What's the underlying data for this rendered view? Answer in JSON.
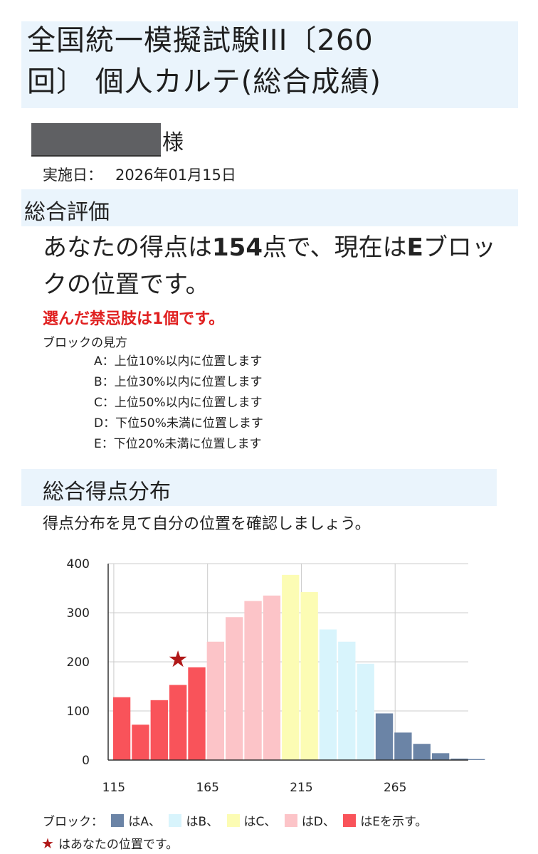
{
  "header": {
    "title_line1": "全国統一模擬試験III〔260",
    "title_line2": "回〕 個人カルテ(総合成績)"
  },
  "recipient": {
    "suffix": "様"
  },
  "exam": {
    "date_label": "実施日：",
    "date_value": "2026年01月15日"
  },
  "overall": {
    "section_title": "総合評価",
    "score_prefix": "あなたの得点は",
    "score": "154",
    "score_mid": "点で、現在は",
    "block": "E",
    "score_suffix": "ブロックの位置です。",
    "taboo_text": "選んだ禁忌肢は1個です。",
    "legend_title": "ブロックの見方",
    "blocks": [
      "A：上位10%以内に位置します",
      "B：上位30%以内に位置します",
      "C：上位50%以内に位置します",
      "D：下位50%未満に位置します",
      "E：下位20%未満に位置します"
    ]
  },
  "distribution": {
    "section_title": "総合得点分布",
    "subtitle": "得点分布を見て自分の位置を確認しましょう。",
    "legend": {
      "prefix": "ブロック：",
      "a": "はA、",
      "b": "はB、",
      "c": "はC、",
      "d": "はD、",
      "e": "はEを示す。",
      "star_text": "はあなたの位置です。"
    }
  },
  "colors": {
    "band": "#eaf4fc",
    "block_a": "#6b84a6",
    "block_b": "#d8f4fc",
    "block_c": "#fcfcb4",
    "block_d": "#fcc4c8",
    "block_e": "#f9535a",
    "star": "#b01818",
    "taboo": "#e02020"
  },
  "chart_data": {
    "type": "bar",
    "title": "",
    "xlabel": "",
    "ylabel": "",
    "ylim": [
      0,
      400
    ],
    "yticks": [
      0,
      100,
      200,
      300,
      400
    ],
    "xticks": [
      115,
      165,
      215,
      265
    ],
    "xlim": [
      112,
      304
    ],
    "bin_width": 10,
    "bins": [
      {
        "x": 115,
        "value": 128,
        "block": "E"
      },
      {
        "x": 125,
        "value": 72,
        "block": "E"
      },
      {
        "x": 135,
        "value": 122,
        "block": "E"
      },
      {
        "x": 145,
        "value": 153,
        "block": "E"
      },
      {
        "x": 155,
        "value": 189,
        "block": "E"
      },
      {
        "x": 165,
        "value": 241,
        "block": "D"
      },
      {
        "x": 175,
        "value": 291,
        "block": "D"
      },
      {
        "x": 185,
        "value": 324,
        "block": "D"
      },
      {
        "x": 195,
        "value": 335,
        "block": "D"
      },
      {
        "x": 205,
        "value": 377,
        "block": "C"
      },
      {
        "x": 215,
        "value": 342,
        "block": "C"
      },
      {
        "x": 225,
        "value": 266,
        "block": "B"
      },
      {
        "x": 235,
        "value": 241,
        "block": "B"
      },
      {
        "x": 245,
        "value": 196,
        "block": "B"
      },
      {
        "x": 255,
        "value": 95,
        "block": "A"
      },
      {
        "x": 265,
        "value": 56,
        "block": "A"
      },
      {
        "x": 275,
        "value": 33,
        "block": "A"
      },
      {
        "x": 285,
        "value": 14,
        "block": "A"
      },
      {
        "x": 295,
        "value": 3,
        "block": "A"
      },
      {
        "x": 304,
        "value": 2,
        "block": "A"
      }
    ],
    "marker": {
      "x": 145,
      "y": 207,
      "label": "★"
    }
  }
}
